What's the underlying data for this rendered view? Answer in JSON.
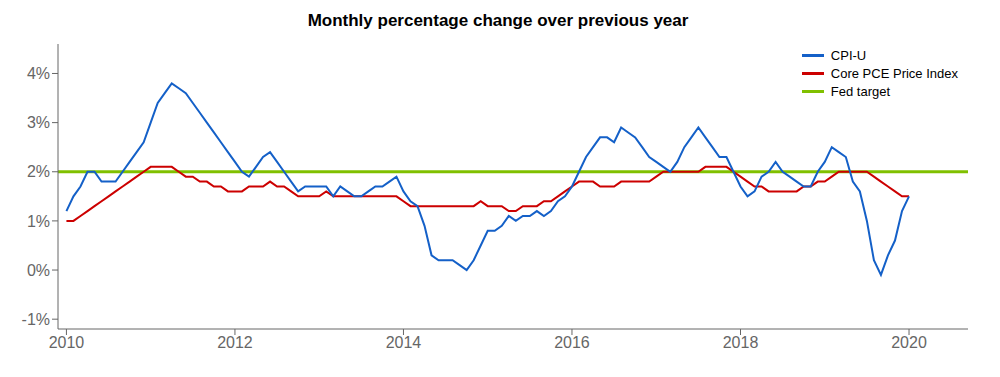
{
  "chart_data": {
    "type": "line",
    "title": "Monthly percentage change over previous year",
    "x": [
      2010,
      2010.0833,
      2010.1667,
      2010.25,
      2010.3333,
      2010.4167,
      2010.5,
      2010.5833,
      2010.6667,
      2010.75,
      2010.8333,
      2010.9167,
      2011,
      2011.0833,
      2011.1667,
      2011.25,
      2011.3333,
      2011.4167,
      2011.5,
      2011.5833,
      2011.6667,
      2011.75,
      2011.8333,
      2011.9167,
      2012,
      2012.0833,
      2012.1667,
      2012.25,
      2012.3333,
      2012.4167,
      2012.5,
      2012.5833,
      2012.6667,
      2012.75,
      2012.8333,
      2012.9167,
      2013,
      2013.0833,
      2013.1667,
      2013.25,
      2013.3333,
      2013.4167,
      2013.5,
      2013.5833,
      2013.6667,
      2013.75,
      2013.8333,
      2013.9167,
      2014,
      2014.0833,
      2014.1667,
      2014.25,
      2014.3333,
      2014.4167,
      2014.5,
      2014.5833,
      2014.6667,
      2014.75,
      2014.8333,
      2014.9167,
      2015,
      2015.0833,
      2015.1667,
      2015.25,
      2015.3333,
      2015.4167,
      2015.5,
      2015.5833,
      2015.6667,
      2015.75,
      2015.8333,
      2015.9167,
      2016,
      2016.0833,
      2016.1667,
      2016.25,
      2016.3333,
      2016.4167,
      2016.5,
      2016.5833,
      2016.6667,
      2016.75,
      2016.8333,
      2016.9167,
      2017,
      2017.0833,
      2017.1667,
      2017.25,
      2017.3333,
      2017.4167,
      2017.5,
      2017.5833,
      2017.6667,
      2017.75,
      2017.8333,
      2017.9167,
      2018,
      2018.0833,
      2018.1667,
      2018.25,
      2018.3333,
      2018.4167,
      2018.5,
      2018.5833,
      2018.6667,
      2018.75,
      2018.8333,
      2018.9167,
      2019,
      2019.0833,
      2019.1667,
      2019.25,
      2019.3333,
      2019.4167,
      2019.5,
      2019.5833,
      2019.6667,
      2019.75,
      2019.8333,
      2019.9167,
      2020
    ],
    "series": [
      {
        "name": "CPI-U",
        "color": "#1460c8",
        "values": [
          1.2,
          1.5,
          1.7,
          2.0,
          2.0,
          1.8,
          1.8,
          1.8,
          2.0,
          2.2,
          2.4,
          2.6,
          3.0,
          3.4,
          3.6,
          3.8,
          3.7,
          3.6,
          3.4,
          3.2,
          3.0,
          2.8,
          2.6,
          2.4,
          2.2,
          2.0,
          1.9,
          2.1,
          2.3,
          2.4,
          2.2,
          2.0,
          1.8,
          1.6,
          1.7,
          1.7,
          1.7,
          1.7,
          1.5,
          1.7,
          1.6,
          1.5,
          1.5,
          1.6,
          1.7,
          1.7,
          1.8,
          1.9,
          1.6,
          1.4,
          1.3,
          0.9,
          0.3,
          0.2,
          0.2,
          0.2,
          0.1,
          0.0,
          0.2,
          0.5,
          0.8,
          0.8,
          0.9,
          1.1,
          1.0,
          1.1,
          1.1,
          1.2,
          1.1,
          1.2,
          1.4,
          1.5,
          1.7,
          2.0,
          2.3,
          2.5,
          2.7,
          2.7,
          2.6,
          2.9,
          2.8,
          2.7,
          2.5,
          2.3,
          2.2,
          2.1,
          2.0,
          2.2,
          2.5,
          2.7,
          2.9,
          2.7,
          2.5,
          2.3,
          2.3,
          2.0,
          1.7,
          1.5,
          1.6,
          1.9,
          2.0,
          2.2,
          2.0,
          1.9,
          1.8,
          1.7,
          1.7,
          2.0,
          2.2,
          2.5,
          2.4,
          2.3,
          1.8,
          1.6,
          1.0,
          0.2,
          -0.1,
          0.3,
          0.6,
          1.2,
          1.5
        ]
      },
      {
        "name": "Core PCE Price Index",
        "color": "#cc0000",
        "values": [
          1.0,
          1.0,
          1.1,
          1.2,
          1.3,
          1.4,
          1.5,
          1.6,
          1.7,
          1.8,
          1.9,
          2.0,
          2.1,
          2.1,
          2.1,
          2.1,
          2.0,
          1.9,
          1.9,
          1.8,
          1.8,
          1.7,
          1.7,
          1.6,
          1.6,
          1.6,
          1.7,
          1.7,
          1.7,
          1.8,
          1.7,
          1.7,
          1.6,
          1.5,
          1.5,
          1.5,
          1.5,
          1.6,
          1.5,
          1.5,
          1.5,
          1.5,
          1.5,
          1.5,
          1.5,
          1.5,
          1.5,
          1.5,
          1.4,
          1.3,
          1.3,
          1.3,
          1.3,
          1.3,
          1.3,
          1.3,
          1.3,
          1.3,
          1.3,
          1.4,
          1.3,
          1.3,
          1.3,
          1.2,
          1.2,
          1.3,
          1.3,
          1.3,
          1.4,
          1.4,
          1.5,
          1.6,
          1.7,
          1.8,
          1.8,
          1.8,
          1.7,
          1.7,
          1.7,
          1.8,
          1.8,
          1.8,
          1.8,
          1.8,
          1.9,
          2.0,
          2.0,
          2.0,
          2.0,
          2.0,
          2.0,
          2.1,
          2.1,
          2.1,
          2.1,
          2.0,
          1.9,
          1.8,
          1.7,
          1.7,
          1.6,
          1.6,
          1.6,
          1.6,
          1.6,
          1.7,
          1.7,
          1.8,
          1.8,
          1.9,
          2.0,
          2.0,
          2.0,
          2.0,
          2.0,
          1.9,
          1.8,
          1.7,
          1.6,
          1.5,
          1.5
        ]
      },
      {
        "name": "Fed target",
        "color": "#80c000",
        "type": "hline",
        "value": 2.0
      }
    ],
    "xlim": [
      2009.9,
      2020.7
    ],
    "xticks": [
      2010,
      2012,
      2014,
      2016,
      2018,
      2020
    ],
    "ylim": [
      -1.2,
      4.6
    ],
    "yticks": [
      {
        "value": -1,
        "label": "-1%"
      },
      {
        "value": 0,
        "label": "0%"
      },
      {
        "value": 1,
        "label": "1%"
      },
      {
        "value": 2,
        "label": "2%"
      },
      {
        "value": 3,
        "label": "3%"
      },
      {
        "value": 4,
        "label": "4%"
      }
    ],
    "grid": false,
    "legend": "upper right"
  }
}
